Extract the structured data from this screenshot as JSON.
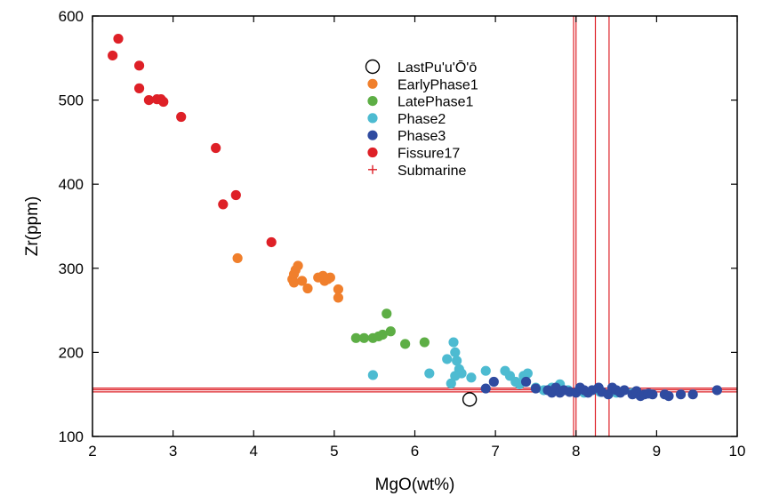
{
  "chart_data": {
    "type": "scatter",
    "title": "",
    "xlabel": "MgO(wt%)",
    "ylabel": "Zr(ppm)",
    "xlim": [
      2,
      10
    ],
    "ylim": [
      100,
      600
    ],
    "xticks": [
      2,
      3,
      4,
      5,
      6,
      7,
      8,
      9,
      10
    ],
    "yticks": [
      100,
      200,
      300,
      400,
      500,
      600
    ],
    "grid": false,
    "legend_position": "top-center",
    "series": [
      {
        "name": "LastPu'u'Ō'ō",
        "marker": "open-circle",
        "color": "#000000",
        "points": [
          [
            6.68,
            144
          ]
        ]
      },
      {
        "name": "EarlyPhase1",
        "marker": "circle",
        "color": "#F07F2C",
        "points": [
          [
            3.8,
            312
          ],
          [
            4.48,
            287
          ],
          [
            4.5,
            293
          ],
          [
            4.52,
            298
          ],
          [
            4.55,
            303
          ],
          [
            4.5,
            283
          ],
          [
            4.6,
            285
          ],
          [
            4.67,
            276
          ],
          [
            4.8,
            289
          ],
          [
            4.86,
            291
          ],
          [
            4.88,
            285
          ],
          [
            4.92,
            287
          ],
          [
            4.95,
            289
          ],
          [
            5.05,
            275
          ],
          [
            5.05,
            265
          ]
        ]
      },
      {
        "name": "LatePhase1",
        "marker": "circle",
        "color": "#5DAE45",
        "points": [
          [
            5.27,
            217
          ],
          [
            5.37,
            217
          ],
          [
            5.48,
            217
          ],
          [
            5.55,
            219
          ],
          [
            5.6,
            221
          ],
          [
            5.65,
            246
          ],
          [
            5.7,
            225
          ],
          [
            5.88,
            210
          ],
          [
            6.12,
            212
          ]
        ]
      },
      {
        "name": "Phase2",
        "marker": "circle",
        "color": "#4DBBD1",
        "points": [
          [
            5.48,
            173
          ],
          [
            6.18,
            175
          ],
          [
            6.4,
            192
          ],
          [
            6.45,
            163
          ],
          [
            6.48,
            212
          ],
          [
            6.5,
            200
          ],
          [
            6.52,
            190
          ],
          [
            6.55,
            180
          ],
          [
            6.58,
            175
          ],
          [
            6.5,
            172
          ],
          [
            6.7,
            170
          ],
          [
            6.88,
            178
          ],
          [
            7.12,
            178
          ],
          [
            7.18,
            172
          ],
          [
            7.25,
            165
          ],
          [
            7.3,
            162
          ],
          [
            7.35,
            172
          ],
          [
            7.4,
            175
          ],
          [
            7.5,
            158
          ],
          [
            7.6,
            155
          ],
          [
            7.7,
            158
          ],
          [
            7.8,
            162
          ],
          [
            7.9,
            155
          ],
          [
            8.1,
            152
          ],
          [
            8.3,
            153
          ],
          [
            8.5,
            152
          ],
          [
            8.7,
            152
          ]
        ]
      },
      {
        "name": "Phase3",
        "marker": "circle",
        "color": "#2F4BA0",
        "points": [
          [
            6.88,
            157
          ],
          [
            6.98,
            165
          ],
          [
            7.38,
            165
          ],
          [
            7.5,
            157
          ],
          [
            7.65,
            155
          ],
          [
            7.7,
            152
          ],
          [
            7.75,
            158
          ],
          [
            7.8,
            152
          ],
          [
            7.85,
            155
          ],
          [
            7.92,
            153
          ],
          [
            8.0,
            152
          ],
          [
            8.05,
            158
          ],
          [
            8.1,
            155
          ],
          [
            8.15,
            152
          ],
          [
            8.2,
            155
          ],
          [
            8.28,
            158
          ],
          [
            8.32,
            153
          ],
          [
            8.4,
            150
          ],
          [
            8.45,
            158
          ],
          [
            8.5,
            155
          ],
          [
            8.55,
            152
          ],
          [
            8.6,
            155
          ],
          [
            8.7,
            150
          ],
          [
            8.75,
            154
          ],
          [
            8.8,
            148
          ],
          [
            8.85,
            150
          ],
          [
            8.9,
            151
          ],
          [
            8.95,
            150
          ],
          [
            9.1,
            150
          ],
          [
            9.15,
            148
          ],
          [
            9.3,
            150
          ],
          [
            9.45,
            150
          ],
          [
            9.75,
            155
          ]
        ]
      },
      {
        "name": "Fissure17",
        "marker": "circle",
        "color": "#DE2027",
        "points": [
          [
            2.25,
            553
          ],
          [
            2.32,
            573
          ],
          [
            2.58,
            541
          ],
          [
            2.58,
            514
          ],
          [
            2.7,
            500
          ],
          [
            2.8,
            501
          ],
          [
            2.85,
            501
          ],
          [
            2.88,
            498
          ],
          [
            3.1,
            480
          ],
          [
            3.53,
            443
          ],
          [
            3.62,
            376
          ],
          [
            3.78,
            387
          ],
          [
            4.22,
            331
          ]
        ]
      },
      {
        "name": "Submarine",
        "marker": "cross-lines",
        "color": "#DE2027",
        "vlines": [
          7.97,
          8.0,
          8.24,
          8.41
        ],
        "hlines": [
          153,
          155.5,
          157.5
        ]
      }
    ]
  }
}
